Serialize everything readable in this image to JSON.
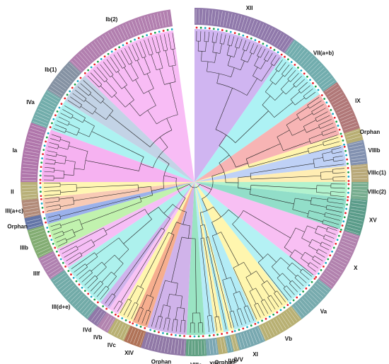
{
  "figure": {
    "type": "circular-phylogenetic-tree",
    "legend": "none",
    "clades": [
      {
        "label": "XII",
        "color": "#c8a8ee"
      },
      {
        "label": "VII(a+b)",
        "color": "#9ff0f2"
      },
      {
        "label": "IX",
        "color": "#f6a7a7"
      },
      {
        "label": "Orphan",
        "color": "#fff2a0"
      },
      {
        "label": "VIIIb",
        "color": "#b4c9f4"
      },
      {
        "label": "VIIIc(1)",
        "color": "#ffeaa6"
      },
      {
        "label": "VIIIc(2)",
        "color": "#a5f0c6"
      },
      {
        "label": "XV",
        "color": "#7fd8bf"
      },
      {
        "label": "X",
        "color": "#f7b4f1"
      },
      {
        "label": "Va",
        "color": "#a7eef2"
      },
      {
        "label": "Vb",
        "color": "#fff4a0"
      },
      {
        "label": "XI",
        "color": "#a6e9f4"
      },
      {
        "label": "IVV",
        "color": "#fff7a6"
      },
      {
        "label": "IVb",
        "color": "#9fe8f0"
      },
      {
        "label": "Orphan",
        "color": "#fff3a0"
      },
      {
        "label": "XIII",
        "color": "#a9e7f7"
      },
      {
        "label": "VIIIa",
        "color": "#88dfb8"
      },
      {
        "label": "Orphan",
        "color": "#c8a6e6"
      },
      {
        "label": "XIV",
        "color": "#f4a07a"
      },
      {
        "label": "IVc",
        "color": "#fff4a0"
      },
      {
        "label": "IVb",
        "color": "#f7b8f3"
      },
      {
        "label": "IVd",
        "color": "#c8a6ea"
      },
      {
        "label": "III(d+e)",
        "color": "#9feeea"
      },
      {
        "label": "IIIf",
        "color": "#f5b3f5"
      },
      {
        "label": "IIIb",
        "color": "#b6f0a0"
      },
      {
        "label": "Orphan",
        "color": "#8aa3e8"
      },
      {
        "label": "III(a+c)",
        "color": "#f7c1a8"
      },
      {
        "label": "II",
        "color": "#fff4a6"
      },
      {
        "label": "Ia",
        "color": "#f5a4ee"
      },
      {
        "label": "IVa",
        "color": "#9ff0ee"
      },
      {
        "label": "Ib(1)",
        "color": "#b9cbe2"
      },
      {
        "label": "Ib(2)",
        "color": "#f7b0f3"
      }
    ]
  }
}
